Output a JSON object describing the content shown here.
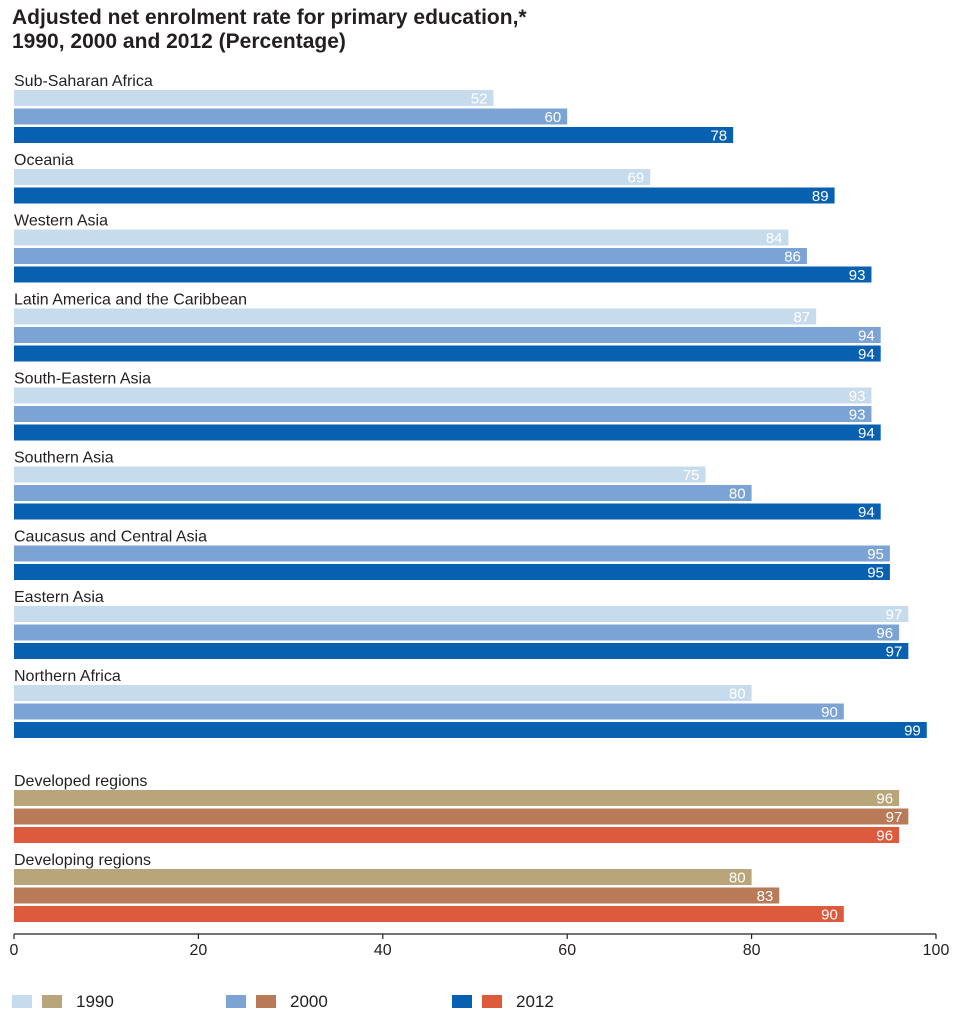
{
  "title_line1": "Adjusted net enrolment rate for primary education,*",
  "title_line2": "1990, 2000 and 2012 (Percentage)",
  "chart_data": {
    "type": "bar",
    "orientation": "horizontal",
    "title": "Adjusted net enrolment rate for primary education,* 1990, 2000 and 2012 (Percentage)",
    "xlim": [
      0,
      100
    ],
    "x_ticks": [
      "0",
      "20",
      "40",
      "60",
      "80",
      "100"
    ],
    "series_names": [
      "1990",
      "2000",
      "2012"
    ],
    "colors": {
      "regional": [
        "#c6dbec",
        "#7ba3d4",
        "#0860b0"
      ],
      "aggregate": [
        "#b9a57a",
        "#b97a57",
        "#dd5a3d"
      ]
    },
    "groups": [
      {
        "label": "Sub-Saharan Africa",
        "values": [
          52,
          60,
          78
        ],
        "palette": "regional"
      },
      {
        "label": "Oceania",
        "values": [
          69,
          null,
          89
        ],
        "palette": "regional"
      },
      {
        "label": "Western Asia",
        "values": [
          84,
          86,
          93
        ],
        "palette": "regional"
      },
      {
        "label": "Latin America and the Caribbean",
        "values": [
          87,
          94,
          94
        ],
        "palette": "regional"
      },
      {
        "label": "South-Eastern Asia",
        "values": [
          93,
          93,
          94
        ],
        "palette": "regional"
      },
      {
        "label": "Southern Asia",
        "values": [
          75,
          80,
          94
        ],
        "palette": "regional"
      },
      {
        "label": "Caucasus and Central Asia",
        "values": [
          null,
          95,
          95
        ],
        "palette": "regional"
      },
      {
        "label": "Eastern Asia",
        "values": [
          97,
          96,
          97
        ],
        "palette": "regional"
      },
      {
        "label": "Northern Africa",
        "values": [
          80,
          90,
          99
        ],
        "palette": "regional"
      },
      {
        "label": "Developed regions",
        "values": [
          96,
          97,
          96
        ],
        "palette": "aggregate"
      },
      {
        "label": "Developing regions",
        "values": [
          80,
          83,
          90
        ],
        "palette": "aggregate"
      }
    ],
    "legend": [
      {
        "label": "1990",
        "colors": [
          "#c6dbec",
          "#b9a57a"
        ]
      },
      {
        "label": "2000",
        "colors": [
          "#7ba3d4",
          "#b97a57"
        ]
      },
      {
        "label": "2012",
        "colors": [
          "#0860b0",
          "#dd5a3d"
        ]
      }
    ],
    "legend_position": "bottom"
  }
}
